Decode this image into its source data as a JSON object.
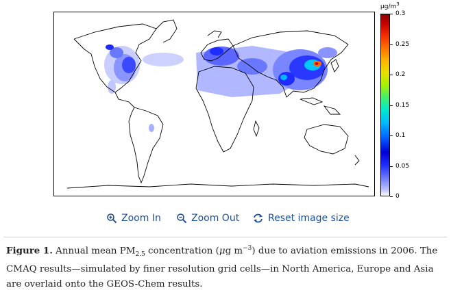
{
  "map": {
    "colorbar": {
      "unit_base": "μg/m",
      "unit_exp": "3",
      "ticks": [
        {
          "value": 0.3,
          "label": "0.3"
        },
        {
          "value": 0.25,
          "label": "0.25"
        },
        {
          "value": 0.2,
          "label": "0.2"
        },
        {
          "value": 0.15,
          "label": "0.15"
        },
        {
          "value": 0.1,
          "label": "0.1"
        },
        {
          "value": 0.05,
          "label": "0.05"
        },
        {
          "value": 0,
          "label": "0"
        }
      ],
      "min": 0,
      "max": 0.3
    },
    "colors": {
      "land_outline": "#000000",
      "low": "#c0c6ff",
      "mid": "#1e2cff",
      "high": "#c80000"
    }
  },
  "controls": {
    "zoom_in": "Zoom In",
    "zoom_out": "Zoom Out",
    "reset": "Reset image size",
    "icons": [
      "zoom-in-icon",
      "zoom-out-icon",
      "reset-icon"
    ],
    "link_color": "#1a4f9c"
  },
  "caption": {
    "label": "Figure 1.",
    "t1": " Annual mean PM",
    "sub": "2.5",
    "t2": " concentration (",
    "mu": "μ",
    "t3": "g m",
    "sup": "−3",
    "t4": ") due to aviation emissions in 2006. The CMAQ results—simulated by finer resolution grid cells—in North America, Europe and Asia are overlaid onto the GEOS-Chem results."
  }
}
